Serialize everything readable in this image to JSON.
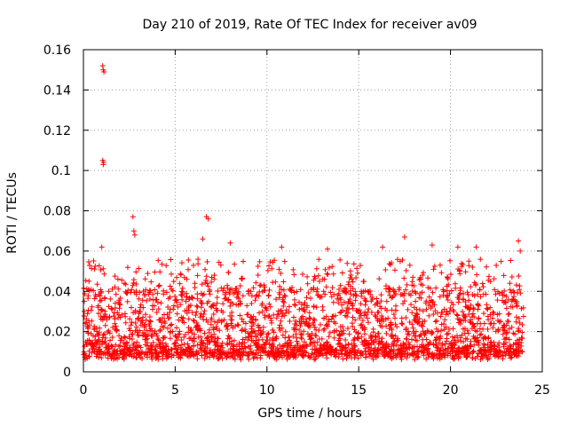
{
  "chart_data": {
    "type": "scatter",
    "title": "Day 210 of 2019, Rate Of TEC Index for receiver av09",
    "xlabel": "GPS time / hours",
    "ylabel": "ROTI / TECUs",
    "xlim": [
      0,
      25
    ],
    "ylim": [
      0,
      0.16
    ],
    "x_ticks": [
      "0",
      "5",
      "10",
      "15",
      "20",
      "25"
    ],
    "y_ticks": [
      "0",
      "0.02",
      "0.04",
      "0.06",
      "0.08",
      "0.1",
      "0.12",
      "0.14",
      "0.16"
    ],
    "grid": true,
    "marker": "+",
    "series": [
      {
        "name": "av09",
        "color": "#ff0000",
        "description": "dense band of ROTI values mostly between 0.005 and 0.045 TECU across 0–24 h",
        "outliers": [
          {
            "x": 1.05,
            "y": 0.152
          },
          {
            "x": 1.08,
            "y": 0.15
          },
          {
            "x": 1.12,
            "y": 0.149
          },
          {
            "x": 1.05,
            "y": 0.105
          },
          {
            "x": 1.08,
            "y": 0.103
          },
          {
            "x": 1.1,
            "y": 0.104
          },
          {
            "x": 1.0,
            "y": 0.062
          },
          {
            "x": 2.7,
            "y": 0.077
          },
          {
            "x": 2.75,
            "y": 0.07
          },
          {
            "x": 2.8,
            "y": 0.068
          },
          {
            "x": 6.7,
            "y": 0.077
          },
          {
            "x": 6.8,
            "y": 0.076
          },
          {
            "x": 6.5,
            "y": 0.066
          },
          {
            "x": 8.0,
            "y": 0.064
          },
          {
            "x": 17.5,
            "y": 0.067
          },
          {
            "x": 19.0,
            "y": 0.063
          },
          {
            "x": 20.4,
            "y": 0.062
          },
          {
            "x": 21.4,
            "y": 0.062
          },
          {
            "x": 23.7,
            "y": 0.065
          },
          {
            "x": 23.8,
            "y": 0.06
          },
          {
            "x": 16.3,
            "y": 0.062
          },
          {
            "x": 10.8,
            "y": 0.062
          },
          {
            "x": 13.3,
            "y": 0.061
          }
        ]
      }
    ]
  }
}
